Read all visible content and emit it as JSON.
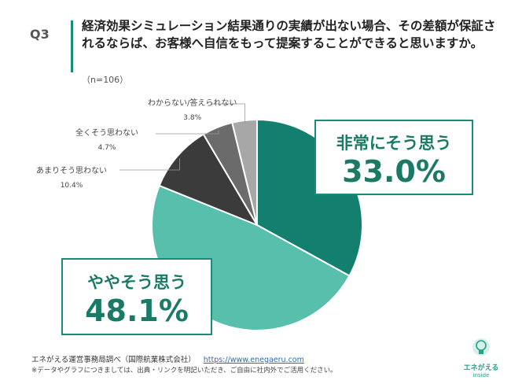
{
  "question": {
    "number": "Q3",
    "text": "経済効果シミュレーション結果通りの実績が出ない場合、その差額が保証されるならば、お客様へ自信をもって提案することができると思いますか。",
    "n": "（n=106）"
  },
  "chart_data": {
    "type": "pie",
    "slices": [
      {
        "label": "非常にそう思う",
        "value": 33.0,
        "value_label": "33.0%",
        "color": "#13806f"
      },
      {
        "label": "ややそう思う",
        "value": 48.1,
        "value_label": "48.1%",
        "color": "#58bfad"
      },
      {
        "label": "あまりそう思わない",
        "value": 10.4,
        "value_label": "10.4%",
        "color": "#3b3b3b"
      },
      {
        "label": "全くそう思わない",
        "value": 4.7,
        "value_label": "4.7%",
        "color": "#6b6b6b"
      },
      {
        "label": "わからない/答えられない",
        "value": 3.8,
        "value_label": "3.8%",
        "color": "#a7a7a7"
      }
    ]
  },
  "footer": {
    "source": "エネがえる運営事務局調べ（国際航業株式会社）",
    "url": "https://www.enegaeru.com",
    "note": "※データやグラフにつきましては、出典・リンクを明記いただき、ご自由に社内外でご活用ください。"
  },
  "logo": {
    "text": "エネがえる",
    "sub": "inside"
  }
}
